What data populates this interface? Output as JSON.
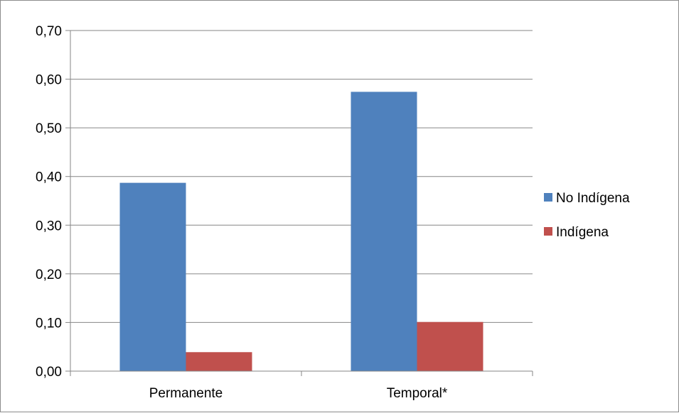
{
  "chart_data": {
    "type": "bar",
    "categories": [
      "Permanente",
      "Temporal*"
    ],
    "series": [
      {
        "name": "No Indígena",
        "values": [
          0.387,
          0.574
        ],
        "color": "#4f81bd"
      },
      {
        "name": "Indígena",
        "values": [
          0.039,
          0.101
        ],
        "color": "#c0504d"
      }
    ],
    "title": "",
    "xlabel": "",
    "ylabel": "",
    "ylim": [
      0,
      0.7
    ],
    "yticks": [
      "0,00",
      "0,10",
      "0,20",
      "0,30",
      "0,40",
      "0,50",
      "0,60",
      "0,70"
    ],
    "grid": true,
    "legend_position": "right"
  }
}
